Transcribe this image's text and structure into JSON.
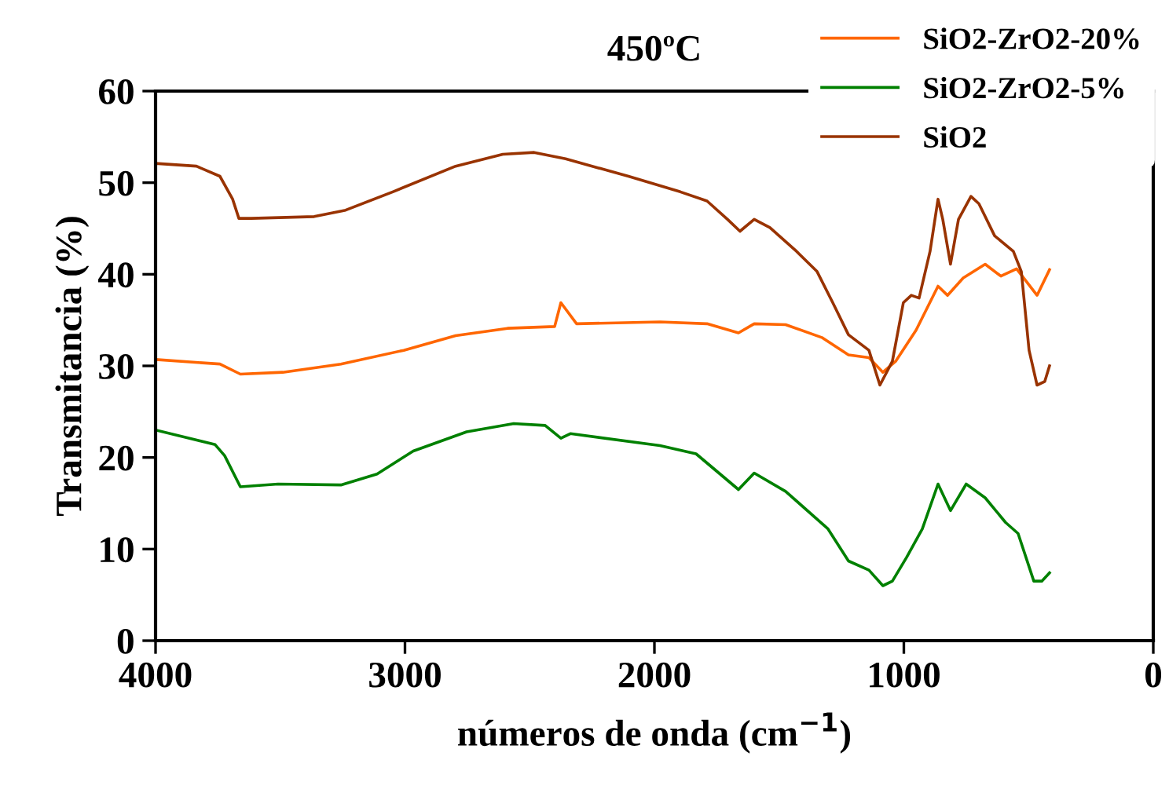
{
  "chart_data": {
    "type": "line",
    "title": "450ºC",
    "xlabel": "números de onda (cm$^{−1}$)",
    "ylabel": "Transmitancia (%)",
    "xlim": [
      4000,
      0
    ],
    "xticks": [
      4000,
      3000,
      2000,
      1000,
      0
    ],
    "ylim": [
      0,
      60
    ],
    "yticks": [
      0,
      10,
      20,
      30,
      40,
      50,
      60
    ],
    "grid": false,
    "legend": "top right",
    "marker": "none",
    "line_style": "solid",
    "series": [
      {
        "name": "SiO2-ZrO2-20%",
        "color": "#ff6600",
        "x": [
          4000,
          3742,
          3660,
          3490,
          3257,
          3005,
          2797,
          2589,
          2400,
          2375,
          2312,
          1978,
          1789,
          1663,
          1600,
          1474,
          1329,
          1222,
          1140,
          1084,
          1033,
          951,
          863,
          825,
          762,
          674,
          611,
          548,
          466,
          416
        ],
        "values": [
          30.7,
          30.2,
          29.1,
          29.3,
          30.2,
          31.7,
          33.3,
          34.1,
          34.3,
          36.9,
          34.6,
          34.8,
          34.6,
          33.6,
          34.6,
          34.5,
          33.1,
          31.2,
          30.9,
          29.3,
          30.5,
          33.9,
          38.7,
          37.7,
          39.6,
          41.1,
          39.8,
          40.6,
          37.7,
          40.5
        ]
      },
      {
        "name": "SiO2-ZrO2-5%",
        "color": "#008000",
        "x": [
          4000,
          3761,
          3723,
          3660,
          3509,
          3257,
          3112,
          2967,
          2753,
          2564,
          2438,
          2375,
          2337,
          1978,
          1833,
          1663,
          1600,
          1474,
          1304,
          1222,
          1140,
          1084,
          1046,
          989,
          926,
          863,
          813,
          750,
          674,
          592,
          542,
          479,
          447,
          416
        ],
        "values": [
          23.0,
          21.4,
          20.2,
          16.8,
          17.1,
          17.0,
          18.2,
          20.7,
          22.8,
          23.7,
          23.5,
          22.1,
          22.6,
          21.3,
          20.4,
          16.5,
          18.3,
          16.3,
          12.2,
          8.7,
          7.7,
          6.0,
          6.5,
          9.1,
          12.2,
          17.1,
          14.2,
          17.1,
          15.6,
          12.9,
          11.7,
          6.5,
          6.5,
          7.4
        ]
      },
      {
        "name": "SiO2",
        "color": "#993300",
        "x": [
          4000,
          4000,
          3836,
          3742,
          3691,
          3666,
          3616,
          3364,
          3238,
          3049,
          2797,
          2608,
          2482,
          2356,
          2104,
          1896,
          1789,
          1707,
          1657,
          1600,
          1537,
          1430,
          1348,
          1285,
          1222,
          1140,
          1096,
          1046,
          1002,
          970,
          939,
          895,
          863,
          844,
          813,
          781,
          731,
          699,
          636,
          561,
          529,
          498,
          466,
          435,
          416
        ],
        "values": [
          0,
          52.1,
          51.8,
          50.7,
          48.2,
          46.1,
          46.1,
          46.3,
          47.0,
          49.0,
          51.8,
          53.1,
          53.3,
          52.6,
          50.7,
          49.0,
          48.0,
          46.0,
          44.7,
          46.0,
          45.1,
          42.5,
          40.3,
          36.9,
          33.4,
          31.7,
          27.9,
          30.5,
          36.9,
          37.7,
          37.4,
          42.5,
          48.2,
          46.0,
          41.1,
          46.0,
          48.5,
          47.7,
          44.2,
          42.5,
          40.3,
          31.7,
          27.9,
          28.3,
          30.0
        ]
      }
    ]
  }
}
